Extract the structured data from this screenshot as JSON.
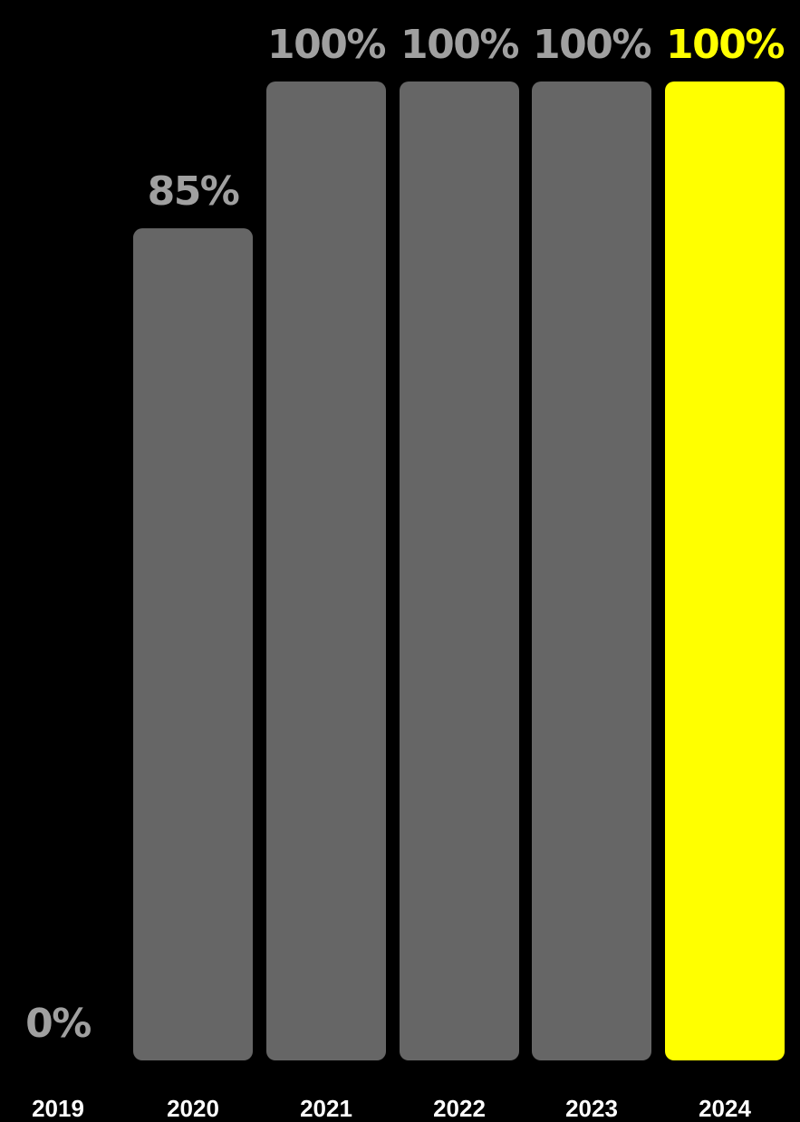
{
  "chart_data": {
    "type": "bar",
    "categories": [
      "2019",
      "2020",
      "2021",
      "2022",
      "2023",
      "2024"
    ],
    "values": [
      0,
      85,
      100,
      100,
      100,
      100
    ],
    "value_labels": [
      "0%",
      "85%",
      "100%",
      "100%",
      "100%",
      "100%"
    ],
    "highlight_category": "2024",
    "ylim": [
      0,
      100
    ],
    "grid": false,
    "legend": "none"
  },
  "colors": {
    "background": "#000000",
    "bar": "#666666",
    "highlight_bar": "#FFFF00",
    "value_label": "#A0A0A0",
    "highlight_label": "#FFFF00",
    "year_label": "#FFFFFF"
  }
}
